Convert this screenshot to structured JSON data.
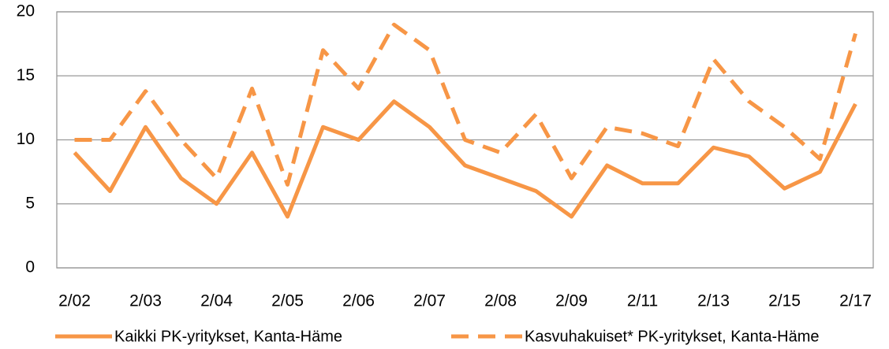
{
  "chart_data": {
    "type": "line",
    "categories": [
      "2/02",
      null,
      "2/03",
      null,
      "2/04",
      null,
      "2/05",
      null,
      "2/06",
      null,
      "2/07",
      null,
      "2/08",
      null,
      "2/09",
      null,
      "2/11",
      null,
      "2/13",
      null,
      "2/15",
      null,
      "2/17"
    ],
    "series": [
      {
        "name": "Kaikki PK-yritykset, Kanta-Häme",
        "color": "#f79646",
        "dash": false,
        "values": [
          9,
          6,
          11,
          7,
          5,
          9,
          4,
          11,
          10,
          13,
          11,
          8,
          7,
          6,
          4,
          8,
          6.6,
          6.6,
          9.4,
          8.7,
          6.2,
          7.5,
          12.8
        ]
      },
      {
        "name": "Kasvuhakuiset* PK-yritykset, Kanta-Häme",
        "color": "#f79646",
        "dash": true,
        "values": [
          10,
          10,
          13.8,
          10,
          7,
          14,
          6.5,
          17,
          14,
          19,
          17,
          10,
          9,
          12,
          7,
          11,
          10.5,
          9.5,
          16.3,
          13,
          11,
          8.5,
          18.3
        ]
      }
    ],
    "ylim": [
      0,
      20
    ],
    "yticks": [
      0,
      5,
      10,
      15,
      20
    ],
    "grid": true,
    "legend": "bottom"
  }
}
